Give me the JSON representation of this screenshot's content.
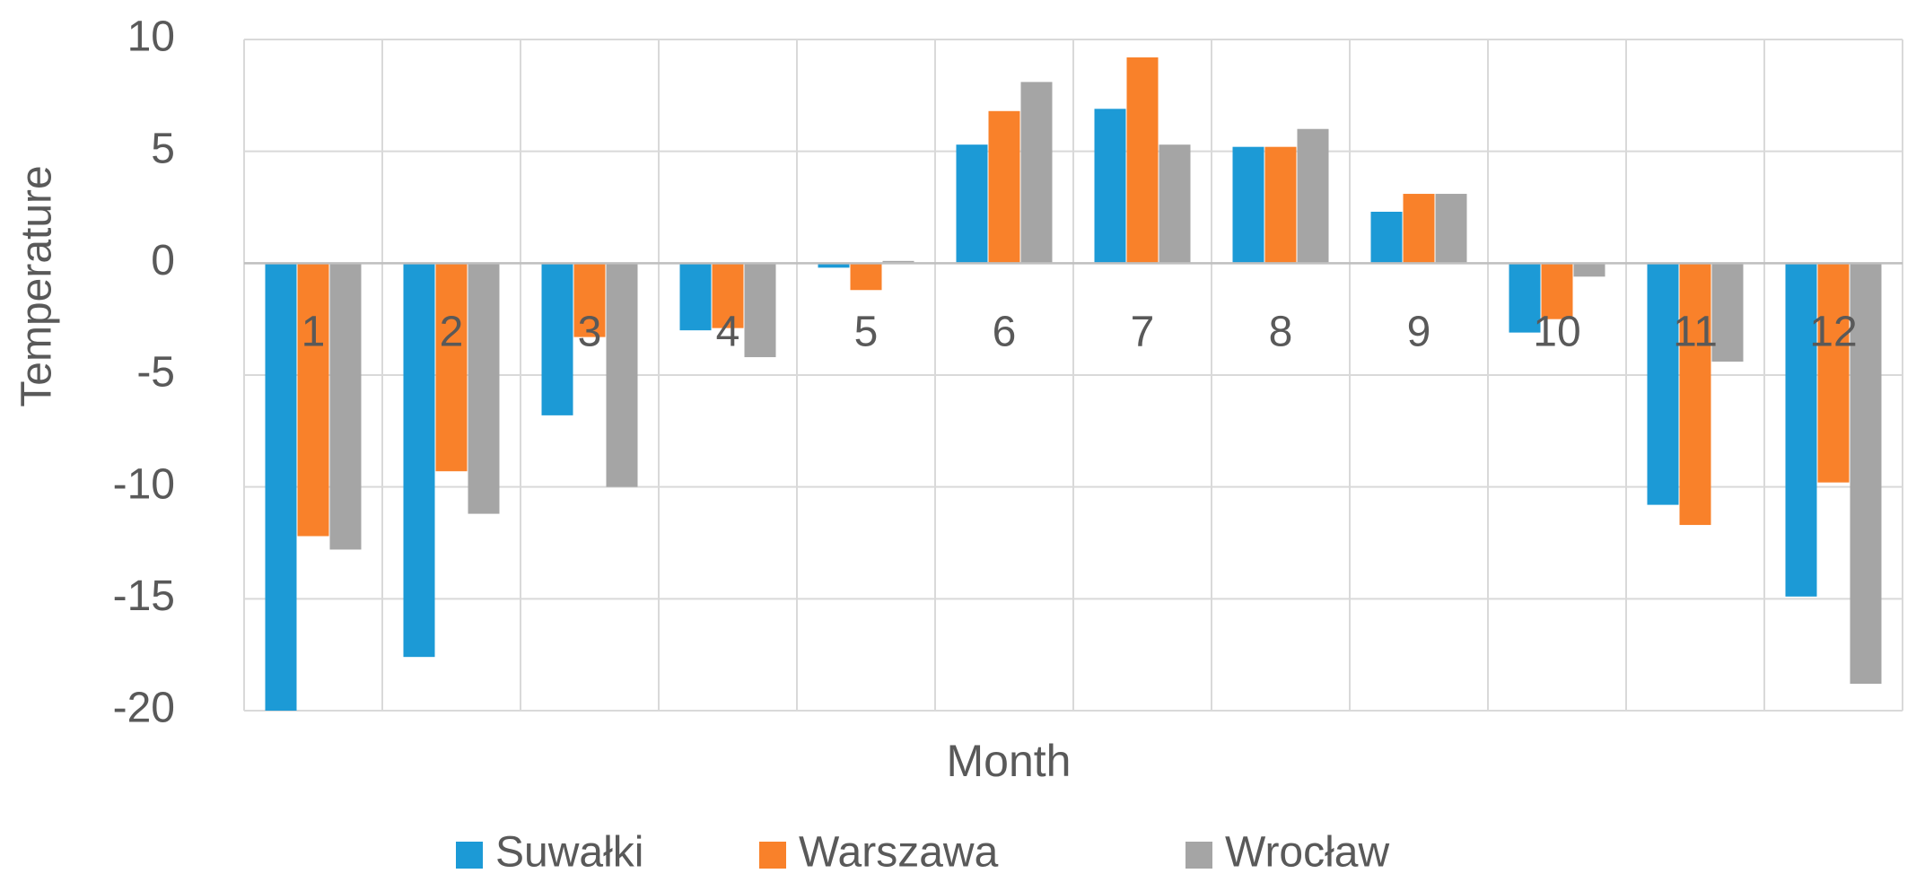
{
  "chart_data": {
    "type": "bar",
    "title": "",
    "xlabel": "Month",
    "ylabel": "Temperature",
    "ylim": [
      -20,
      10
    ],
    "yticks": [
      10,
      5,
      0,
      -5,
      -10,
      -15,
      -20
    ],
    "categories": [
      "1",
      "2",
      "3",
      "4",
      "5",
      "6",
      "7",
      "8",
      "9",
      "10",
      "11",
      "12"
    ],
    "grid": true,
    "legend_position": "bottom",
    "series": [
      {
        "name": "Suwałki",
        "color": "#1C9AD6",
        "values": [
          -20.0,
          -17.6,
          -6.8,
          -3.0,
          -0.2,
          5.3,
          6.9,
          5.2,
          2.3,
          -3.1,
          -10.8,
          -14.9
        ]
      },
      {
        "name": "Warszawa",
        "color": "#F9812A",
        "values": [
          -12.2,
          -9.3,
          -3.3,
          -2.9,
          -1.2,
          6.8,
          9.2,
          5.2,
          3.1,
          -2.5,
          -11.7,
          -9.8
        ]
      },
      {
        "name": "Wrocław",
        "color": "#A5A5A5",
        "values": [
          -12.8,
          -11.2,
          -10.0,
          -4.2,
          0.1,
          8.1,
          5.3,
          6.0,
          3.1,
          -0.6,
          -4.4,
          -18.8
        ]
      }
    ]
  }
}
